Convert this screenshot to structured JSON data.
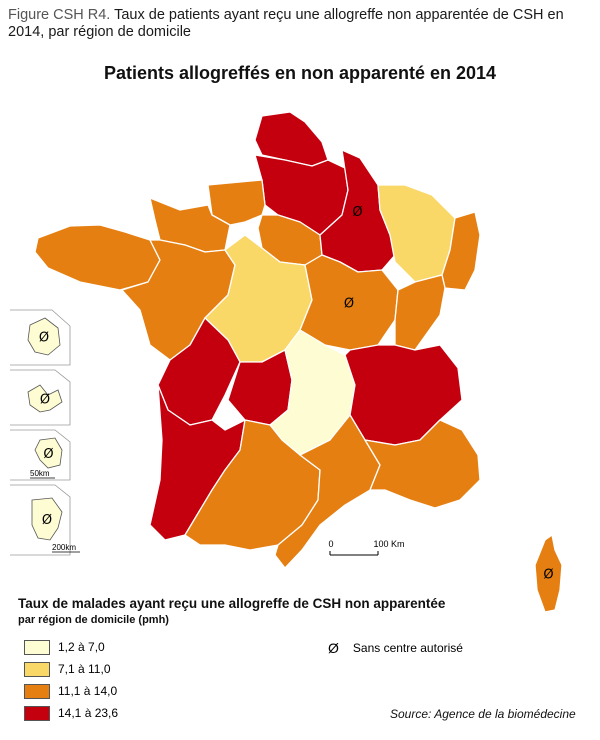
{
  "caption": {
    "lead": "Figure CSH R4.",
    "text": " Taux de patients ayant reçu une allogreffe non apparentée de CSH en 2014, par région de domicile"
  },
  "map_title": "Patients allogreffés en non apparenté en 2014",
  "scale_bar": {
    "zero": "0",
    "label": "100 Km"
  },
  "inset_scales": {
    "reunion": "50km",
    "guyane": "200km"
  },
  "symbol": {
    "glyph": "Ø",
    "label": "Sans centre autorisé"
  },
  "legend": {
    "title": "Taux de malades ayant reçu une allogreffe de CSH non apparentée",
    "subtitle": "par région de domicile (pmh)",
    "classes": [
      {
        "label": "1,2 à 7,0",
        "color": "#fefcd2"
      },
      {
        "label": "7,1 à 11,0",
        "color": "#f9d868"
      },
      {
        "label": "11,1 à 14,0",
        "color": "#e57f11"
      },
      {
        "label": "14,1 à 23,6",
        "color": "#c4000e"
      }
    ]
  },
  "source": "Source: Agence de la biomédecine",
  "regions": [
    {
      "name": "Nord-Pas-de-Calais",
      "class": 3,
      "no_center": false
    },
    {
      "name": "Picardie",
      "class": 3,
      "no_center": false
    },
    {
      "name": "Haute-Normandie",
      "class": 2,
      "no_center": false
    },
    {
      "name": "Basse-Normandie",
      "class": 2,
      "no_center": false
    },
    {
      "name": "Bretagne",
      "class": 2,
      "no_center": false
    },
    {
      "name": "Pays de la Loire",
      "class": 2,
      "no_center": false
    },
    {
      "name": "Île-de-France",
      "class": 2,
      "no_center": false
    },
    {
      "name": "Centre",
      "class": 1,
      "no_center": false
    },
    {
      "name": "Champagne-Ardenne",
      "class": 3,
      "no_center": true
    },
    {
      "name": "Lorraine",
      "class": 1,
      "no_center": false
    },
    {
      "name": "Alsace",
      "class": 2,
      "no_center": false
    },
    {
      "name": "Bourgogne",
      "class": 2,
      "no_center": true
    },
    {
      "name": "Franche-Comté",
      "class": 2,
      "no_center": false
    },
    {
      "name": "Poitou-Charentes",
      "class": 3,
      "no_center": false
    },
    {
      "name": "Limousin",
      "class": 3,
      "no_center": false
    },
    {
      "name": "Auvergne",
      "class": 0,
      "no_center": false
    },
    {
      "name": "Rhône-Alpes",
      "class": 3,
      "no_center": false
    },
    {
      "name": "Aquitaine",
      "class": 3,
      "no_center": false
    },
    {
      "name": "Midi-Pyrénées",
      "class": 2,
      "no_center": false
    },
    {
      "name": "Languedoc-Roussillon",
      "class": 2,
      "no_center": false
    },
    {
      "name": "Provence-Alpes-Côte d'Azur",
      "class": 2,
      "no_center": false
    },
    {
      "name": "Corse",
      "class": 2,
      "no_center": true
    },
    {
      "name": "Guadeloupe",
      "class": 0,
      "no_center": true
    },
    {
      "name": "Martinique",
      "class": 0,
      "no_center": true
    },
    {
      "name": "Guyane",
      "class": 0,
      "no_center": true
    },
    {
      "name": "La Réunion",
      "class": 0,
      "no_center": true
    }
  ]
}
